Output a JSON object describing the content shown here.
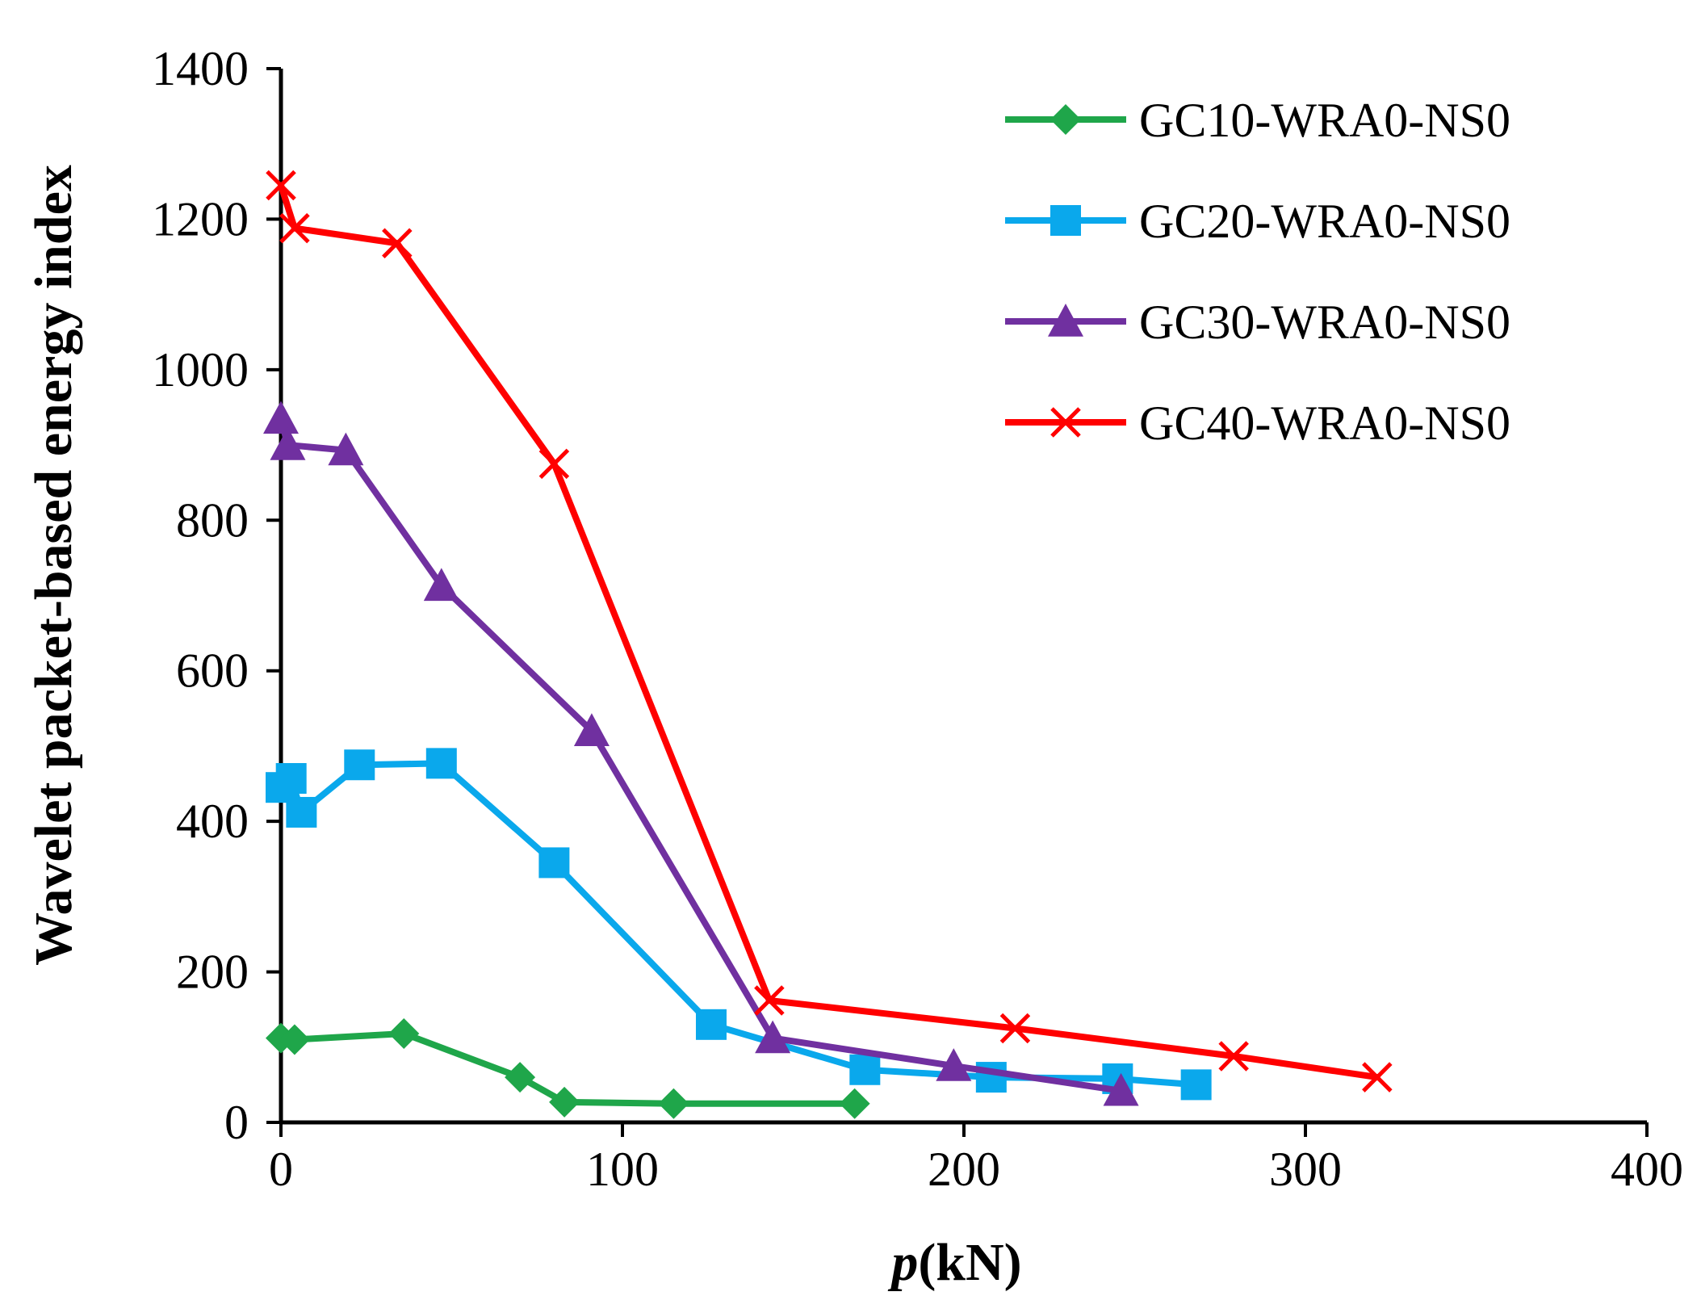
{
  "chart_data": {
    "type": "line",
    "title": "",
    "xlabel_prefix": "p",
    "xlabel_suffix": "(kN)",
    "ylabel": "Wavelet packet-based energy index",
    "xlim": [
      0,
      400
    ],
    "ylim": [
      0,
      1400
    ],
    "xticks": [
      0,
      100,
      200,
      300,
      400
    ],
    "yticks": [
      0,
      200,
      400,
      600,
      800,
      1000,
      1200,
      1400
    ],
    "grid": false,
    "legend_position": "top-right",
    "series": [
      {
        "name": "GC10-WRA0-NS0",
        "color": "#1fa64a",
        "marker": "diamond",
        "x": [
          0,
          4,
          36,
          70,
          83,
          115,
          168
        ],
        "y": [
          112,
          110,
          118,
          60,
          27,
          25,
          25
        ]
      },
      {
        "name": "GC20-WRA0-NS0",
        "color": "#0aa8ec",
        "marker": "square",
        "x": [
          0,
          3,
          6,
          23,
          47,
          80,
          126,
          171,
          208,
          245,
          268
        ],
        "y": [
          445,
          457,
          412,
          475,
          477,
          345,
          130,
          70,
          60,
          58,
          50
        ]
      },
      {
        "name": "GC30-WRA0-NS0",
        "color": "#7030a0",
        "marker": "triangle",
        "x": [
          0,
          2,
          19,
          47,
          91,
          144,
          197,
          246
        ],
        "y": [
          935,
          900,
          893,
          713,
          520,
          112,
          75,
          42
        ]
      },
      {
        "name": "GC40-WRA0-NS0",
        "color": "#ff0000",
        "marker": "x",
        "x": [
          0,
          4,
          34,
          80,
          143,
          215,
          279,
          321
        ],
        "y": [
          1245,
          1188,
          1168,
          875,
          162,
          125,
          88,
          60
        ]
      }
    ]
  }
}
